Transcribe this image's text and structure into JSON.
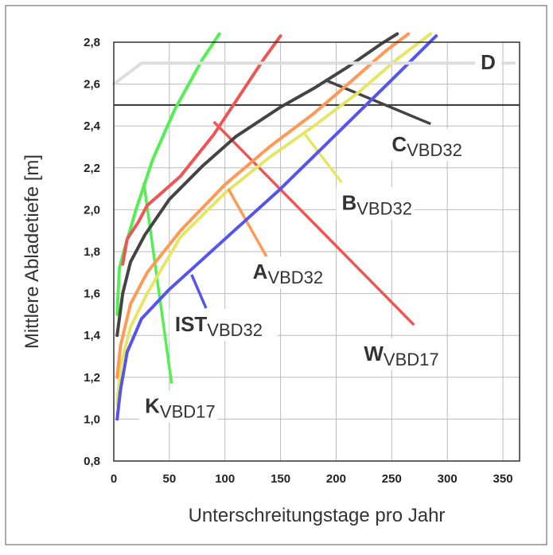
{
  "chart_data": {
    "type": "line",
    "xlabel": "Unterschreitungstage pro Jahr",
    "ylabel": "Mittlere Abladetiefe [m]",
    "xlim": [
      0,
      365
    ],
    "ylim": [
      0.8,
      2.8
    ],
    "x_ticks": [
      0,
      50,
      100,
      150,
      200,
      250,
      300,
      350
    ],
    "y_ticks": [
      "0,8",
      "1,0",
      "1,2",
      "1,4",
      "1,6",
      "1,8",
      "2,0",
      "2,2",
      "2,4",
      "2,6",
      "2,8"
    ],
    "y_tick_values": [
      0.8,
      1.0,
      1.2,
      1.4,
      1.6,
      1.8,
      2.0,
      2.2,
      2.4,
      2.6,
      2.8
    ],
    "grid": true,
    "reference_line": {
      "y": 2.5,
      "color": "#333333"
    },
    "series": [
      {
        "label_main": "K",
        "label_sub": "VBD17",
        "color": "#55ee55",
        "points": [
          [
            3,
            1.5
          ],
          [
            5,
            1.72
          ],
          [
            10,
            1.82
          ],
          [
            20,
            2.0
          ],
          [
            35,
            2.24
          ],
          [
            55,
            2.48
          ],
          [
            80,
            2.72
          ],
          [
            95,
            2.84
          ]
        ],
        "leader": [
          [
            27,
            2.13
          ],
          [
            52,
            1.17
          ]
        ],
        "label_x": 28,
        "label_y": 1.03
      },
      {
        "label_main": "W",
        "label_sub": "VBD17",
        "color": "#ee5555",
        "points": [
          [
            8,
            1.74
          ],
          [
            12,
            1.86
          ],
          [
            22,
            1.94
          ],
          [
            30,
            2.02
          ],
          [
            45,
            2.09
          ],
          [
            60,
            2.16
          ],
          [
            75,
            2.26
          ],
          [
            90,
            2.36
          ],
          [
            105,
            2.48
          ],
          [
            120,
            2.6
          ],
          [
            135,
            2.72
          ],
          [
            150,
            2.83
          ]
        ],
        "leader": [
          [
            90,
            2.42
          ],
          [
            270,
            1.45
          ]
        ],
        "label_x": 225,
        "label_y": 1.28
      },
      {
        "label_main": "C",
        "label_sub": "VBD32",
        "color": "#444444",
        "points": [
          [
            3,
            1.4
          ],
          [
            8,
            1.6
          ],
          [
            15,
            1.75
          ],
          [
            28,
            1.88
          ],
          [
            50,
            2.05
          ],
          [
            80,
            2.21
          ],
          [
            110,
            2.35
          ],
          [
            150,
            2.49
          ],
          [
            180,
            2.58
          ],
          [
            210,
            2.68
          ],
          [
            240,
            2.79
          ],
          [
            255,
            2.84
          ]
        ],
        "leader": [
          [
            190,
            2.62
          ],
          [
            285,
            2.41
          ]
        ],
        "label_x": 250,
        "label_y": 2.28
      },
      {
        "label_main": "B",
        "label_sub": "VBD32",
        "color": "#e6e666",
        "points": [
          [
            3,
            1.07
          ],
          [
            6,
            1.25
          ],
          [
            15,
            1.44
          ],
          [
            30,
            1.6
          ],
          [
            60,
            1.87
          ],
          [
            100,
            2.08
          ],
          [
            140,
            2.25
          ],
          [
            180,
            2.4
          ],
          [
            220,
            2.56
          ],
          [
            255,
            2.72
          ],
          [
            285,
            2.84
          ]
        ],
        "leader": [
          [
            172,
            2.36
          ],
          [
            205,
            2.13
          ]
        ],
        "label_x": 205,
        "label_y": 2.0
      },
      {
        "label_main": "A",
        "label_sub": "VBD32",
        "color": "#ff9955",
        "points": [
          [
            3,
            1.2
          ],
          [
            6,
            1.35
          ],
          [
            15,
            1.55
          ],
          [
            30,
            1.7
          ],
          [
            60,
            1.9
          ],
          [
            100,
            2.12
          ],
          [
            140,
            2.3
          ],
          [
            180,
            2.46
          ],
          [
            215,
            2.62
          ],
          [
            245,
            2.76
          ],
          [
            265,
            2.84
          ]
        ],
        "leader": [
          [
            103,
            2.1
          ],
          [
            138,
            1.77
          ]
        ],
        "label_x": 125,
        "label_y": 1.67
      },
      {
        "label_main": "IST",
        "label_sub": "VBD32",
        "color": "#5555ee",
        "points": [
          [
            3,
            1.0
          ],
          [
            6,
            1.14
          ],
          [
            12,
            1.32
          ],
          [
            25,
            1.48
          ],
          [
            50,
            1.62
          ],
          [
            75,
            1.74
          ],
          [
            100,
            1.86
          ],
          [
            150,
            2.1
          ],
          [
            200,
            2.36
          ],
          [
            250,
            2.62
          ],
          [
            290,
            2.83
          ]
        ],
        "leader": [
          [
            70,
            1.69
          ],
          [
            83,
            1.53
          ]
        ],
        "label_x": 55,
        "label_y": 1.42
      },
      {
        "label_main": "D",
        "label_sub": "",
        "color": "#dddddd",
        "points": [
          [
            0,
            2.6
          ],
          [
            25,
            2.7
          ],
          [
            360,
            2.7
          ]
        ],
        "leader": [],
        "label_x": 330,
        "label_y": 2.67
      }
    ]
  }
}
